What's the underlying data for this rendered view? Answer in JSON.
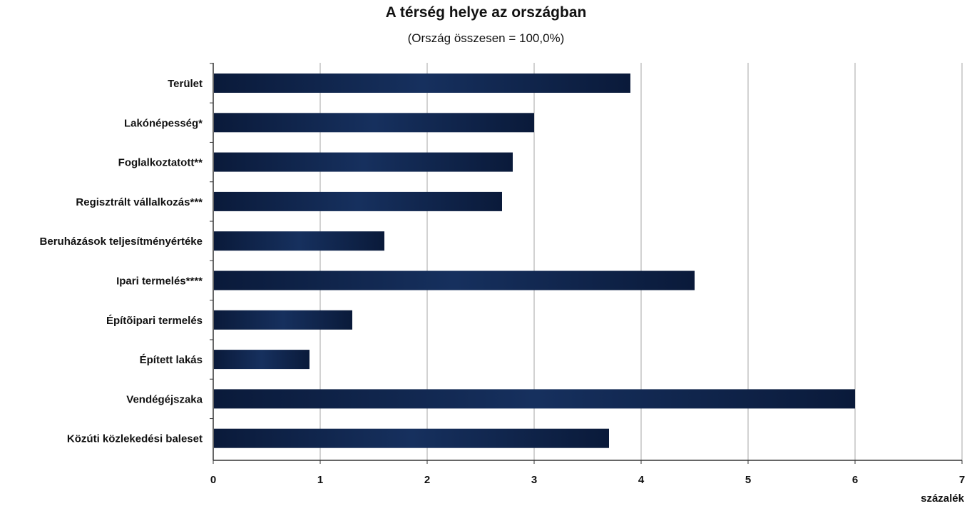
{
  "chart_data": {
    "type": "bar",
    "orientation": "horizontal",
    "title": "A térség helye az országban",
    "subtitle": "(Ország összesen = 100,0%)",
    "xlabel": "százalék",
    "ylabel": "",
    "xlim": [
      0,
      7
    ],
    "xticks": [
      "0",
      "1",
      "2",
      "3",
      "4",
      "5",
      "6",
      "7"
    ],
    "grid": true,
    "legend": "none",
    "bar_color": "#0d2147",
    "categories": [
      "Terület",
      "Lakónépesség*",
      "Foglalkoztatott**",
      "Regisztrált vállalkozás***",
      "Beruházások teljesítményértéke",
      "Ipari termelés****",
      "Építõipari termelés",
      "Épített lakás",
      "Vendégéjszaka",
      "Közúti közlekedési baleset"
    ],
    "values": [
      3.9,
      3.0,
      2.8,
      2.7,
      1.6,
      4.5,
      1.3,
      0.9,
      6.0,
      3.7
    ]
  }
}
